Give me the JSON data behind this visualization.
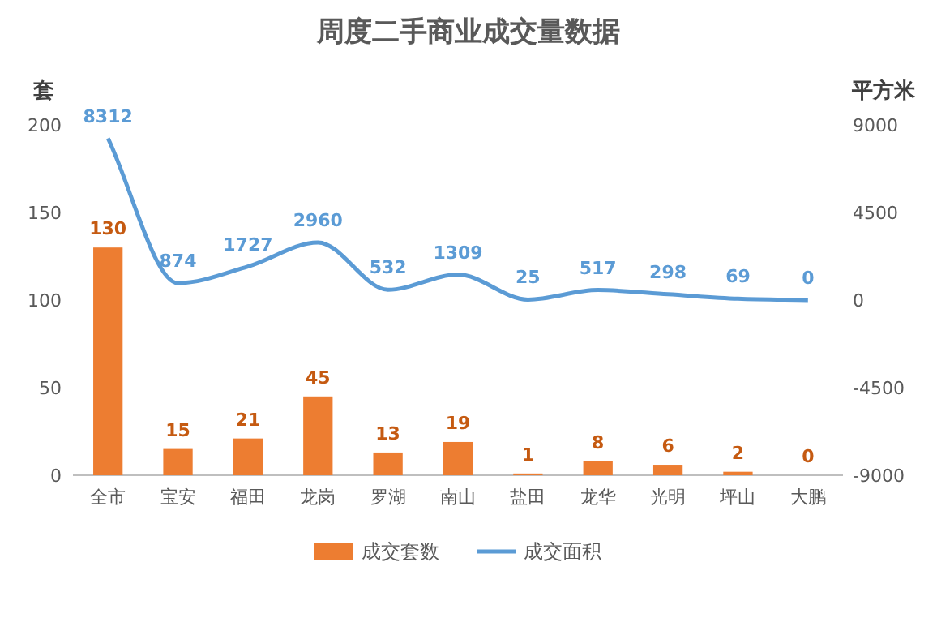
{
  "chart_data": {
    "type": "bar",
    "title": "周度二手商业成交量数据",
    "ylabel": "套",
    "y2label": "平方米",
    "categories": [
      "全市",
      "宝安",
      "福田",
      "龙岗",
      "罗湖",
      "南山",
      "盐田",
      "龙华",
      "光明",
      "坪山",
      "大鹏"
    ],
    "series": [
      {
        "name": "成交套数",
        "color": "#ed7d31",
        "values": [
          130,
          15,
          21,
          45,
          13,
          19,
          1,
          8,
          6,
          2,
          0
        ]
      },
      {
        "name": "成交面积",
        "type": "line",
        "axis": "y2",
        "color": "#5b9bd5",
        "values": [
          8312,
          874,
          1727,
          2960,
          532,
          1309,
          25,
          517,
          298,
          69,
          0
        ]
      }
    ],
    "ylim": [
      0,
      200
    ],
    "yticks": [
      0,
      50,
      100,
      150,
      200
    ],
    "y2lim": [
      -9000,
      9000
    ],
    "y2ticks": [
      -9000,
      -4500,
      0,
      4500,
      9000
    ],
    "data_labels": true,
    "legend": "bottom",
    "grid": false
  }
}
